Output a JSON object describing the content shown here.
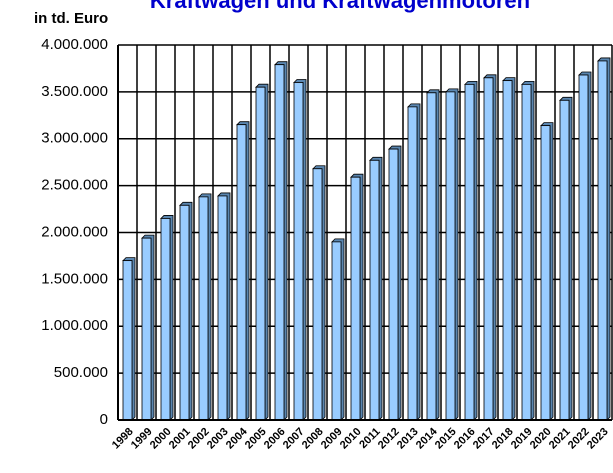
{
  "chart_data": {
    "type": "bar",
    "title": "Kraftwagen und Kraftwagenmotoren",
    "y_label": "in td. Euro",
    "categories": [
      "1998",
      "1999",
      "2000",
      "2001",
      "2002",
      "2003",
      "2004",
      "2005",
      "2006",
      "2007",
      "2008",
      "2009",
      "2010",
      "2011",
      "2012",
      "2013",
      "2014",
      "2015",
      "2016",
      "2017",
      "2018",
      "2019",
      "2020",
      "2021",
      "2022",
      "2023"
    ],
    "values": [
      1700000,
      1940000,
      2150000,
      2290000,
      2380000,
      2390000,
      3150000,
      3550000,
      3790000,
      3600000,
      2680000,
      1900000,
      2590000,
      2770000,
      2890000,
      3340000,
      3490000,
      3500000,
      3580000,
      3650000,
      3620000,
      3580000,
      3140000,
      3410000,
      3680000,
      3830000
    ],
    "color": "#99ccff",
    "ylim": [
      0,
      4000000
    ],
    "yticks": [
      0,
      {
        "value": 500000,
        "label": "500.000"
      },
      {
        "value": 1000000,
        "label": "1.000.000"
      },
      {
        "value": 1500000,
        "label": "1.500.000"
      },
      {
        "value": 2000000,
        "label": "2.000.000"
      },
      {
        "value": 2500000,
        "label": "2.500.000"
      },
      {
        "value": 3000000,
        "label": "3.000.000"
      },
      {
        "value": 3500000,
        "label": "3.500.000"
      },
      {
        "value": 4000000,
        "label": "4.000.000"
      }
    ],
    "grid": true
  }
}
